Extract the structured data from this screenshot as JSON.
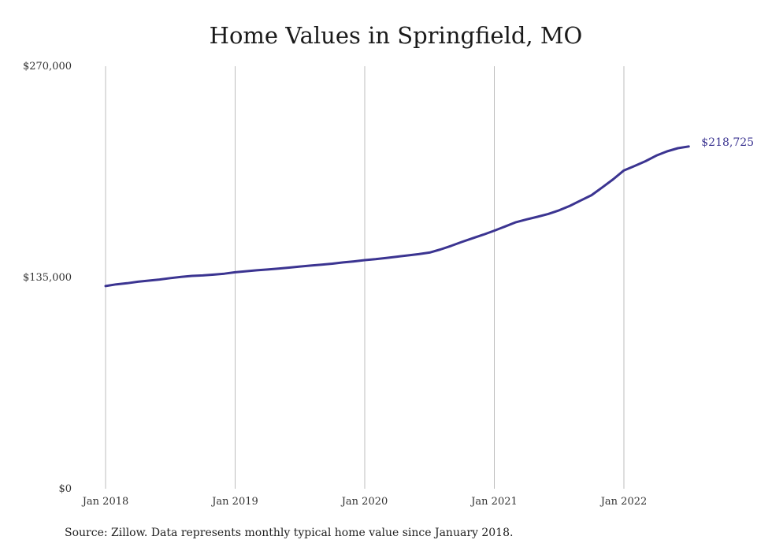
{
  "chart_data": {
    "type": "line",
    "title": "Home Values in Springfield, MO",
    "xlabel": "",
    "ylabel": "",
    "x_ticks": [
      {
        "label": "Jan 2018",
        "value": "2018-01"
      },
      {
        "label": "Jan 2019",
        "value": "2019-01"
      },
      {
        "label": "Jan 2020",
        "value": "2020-01"
      },
      {
        "label": "Jan 2021",
        "value": "2021-01"
      },
      {
        "label": "Jan 2022",
        "value": "2022-01"
      }
    ],
    "y_ticks": [
      {
        "label": "$0",
        "value": 0
      },
      {
        "label": "$135,000",
        "value": 135000
      },
      {
        "label": "$270,000",
        "value": 270000
      }
    ],
    "ylim": [
      0,
      270000
    ],
    "xlim": [
      "2018-01",
      "2022-07"
    ],
    "grid": {
      "vertical": true,
      "horizontal": false
    },
    "line_color": "#3b3491",
    "end_label": "$218,725",
    "series": [
      {
        "x": [
          "2018-01",
          "2018-02",
          "2018-03",
          "2018-04",
          "2018-05",
          "2018-06",
          "2018-07",
          "2018-08",
          "2018-09",
          "2018-10",
          "2018-11",
          "2018-12",
          "2019-01",
          "2019-02",
          "2019-03",
          "2019-04",
          "2019-05",
          "2019-06",
          "2019-07",
          "2019-08",
          "2019-09",
          "2019-10",
          "2019-11",
          "2019-12",
          "2020-01",
          "2020-02",
          "2020-03",
          "2020-04",
          "2020-05",
          "2020-06",
          "2020-07",
          "2020-08",
          "2020-09",
          "2020-10",
          "2020-11",
          "2020-12",
          "2021-01",
          "2021-02",
          "2021-03",
          "2021-04",
          "2021-05",
          "2021-06",
          "2021-07",
          "2021-08",
          "2021-09",
          "2021-10",
          "2021-11",
          "2021-12",
          "2022-01",
          "2022-02",
          "2022-03",
          "2022-04",
          "2022-05",
          "2022-06",
          "2022-07"
        ],
        "values": [
          129500,
          130600,
          131300,
          132300,
          133000,
          133700,
          134600,
          135400,
          136000,
          136300,
          136800,
          137400,
          138300,
          139000,
          139600,
          140100,
          140700,
          141300,
          142000,
          142600,
          143200,
          143800,
          144600,
          145300,
          146100,
          146700,
          147500,
          148300,
          149100,
          149900,
          150900,
          152900,
          155200,
          157700,
          160100,
          162400,
          164900,
          167600,
          170300,
          172100,
          173800,
          175600,
          177900,
          180800,
          184200,
          187600,
          192600,
          197700,
          203400,
          206300,
          209300,
          212900,
          215600,
          217600,
          218725
        ]
      }
    ]
  },
  "footer": {
    "source_text": "Source: Zillow. Data represents monthly typical home value since January 2018."
  }
}
